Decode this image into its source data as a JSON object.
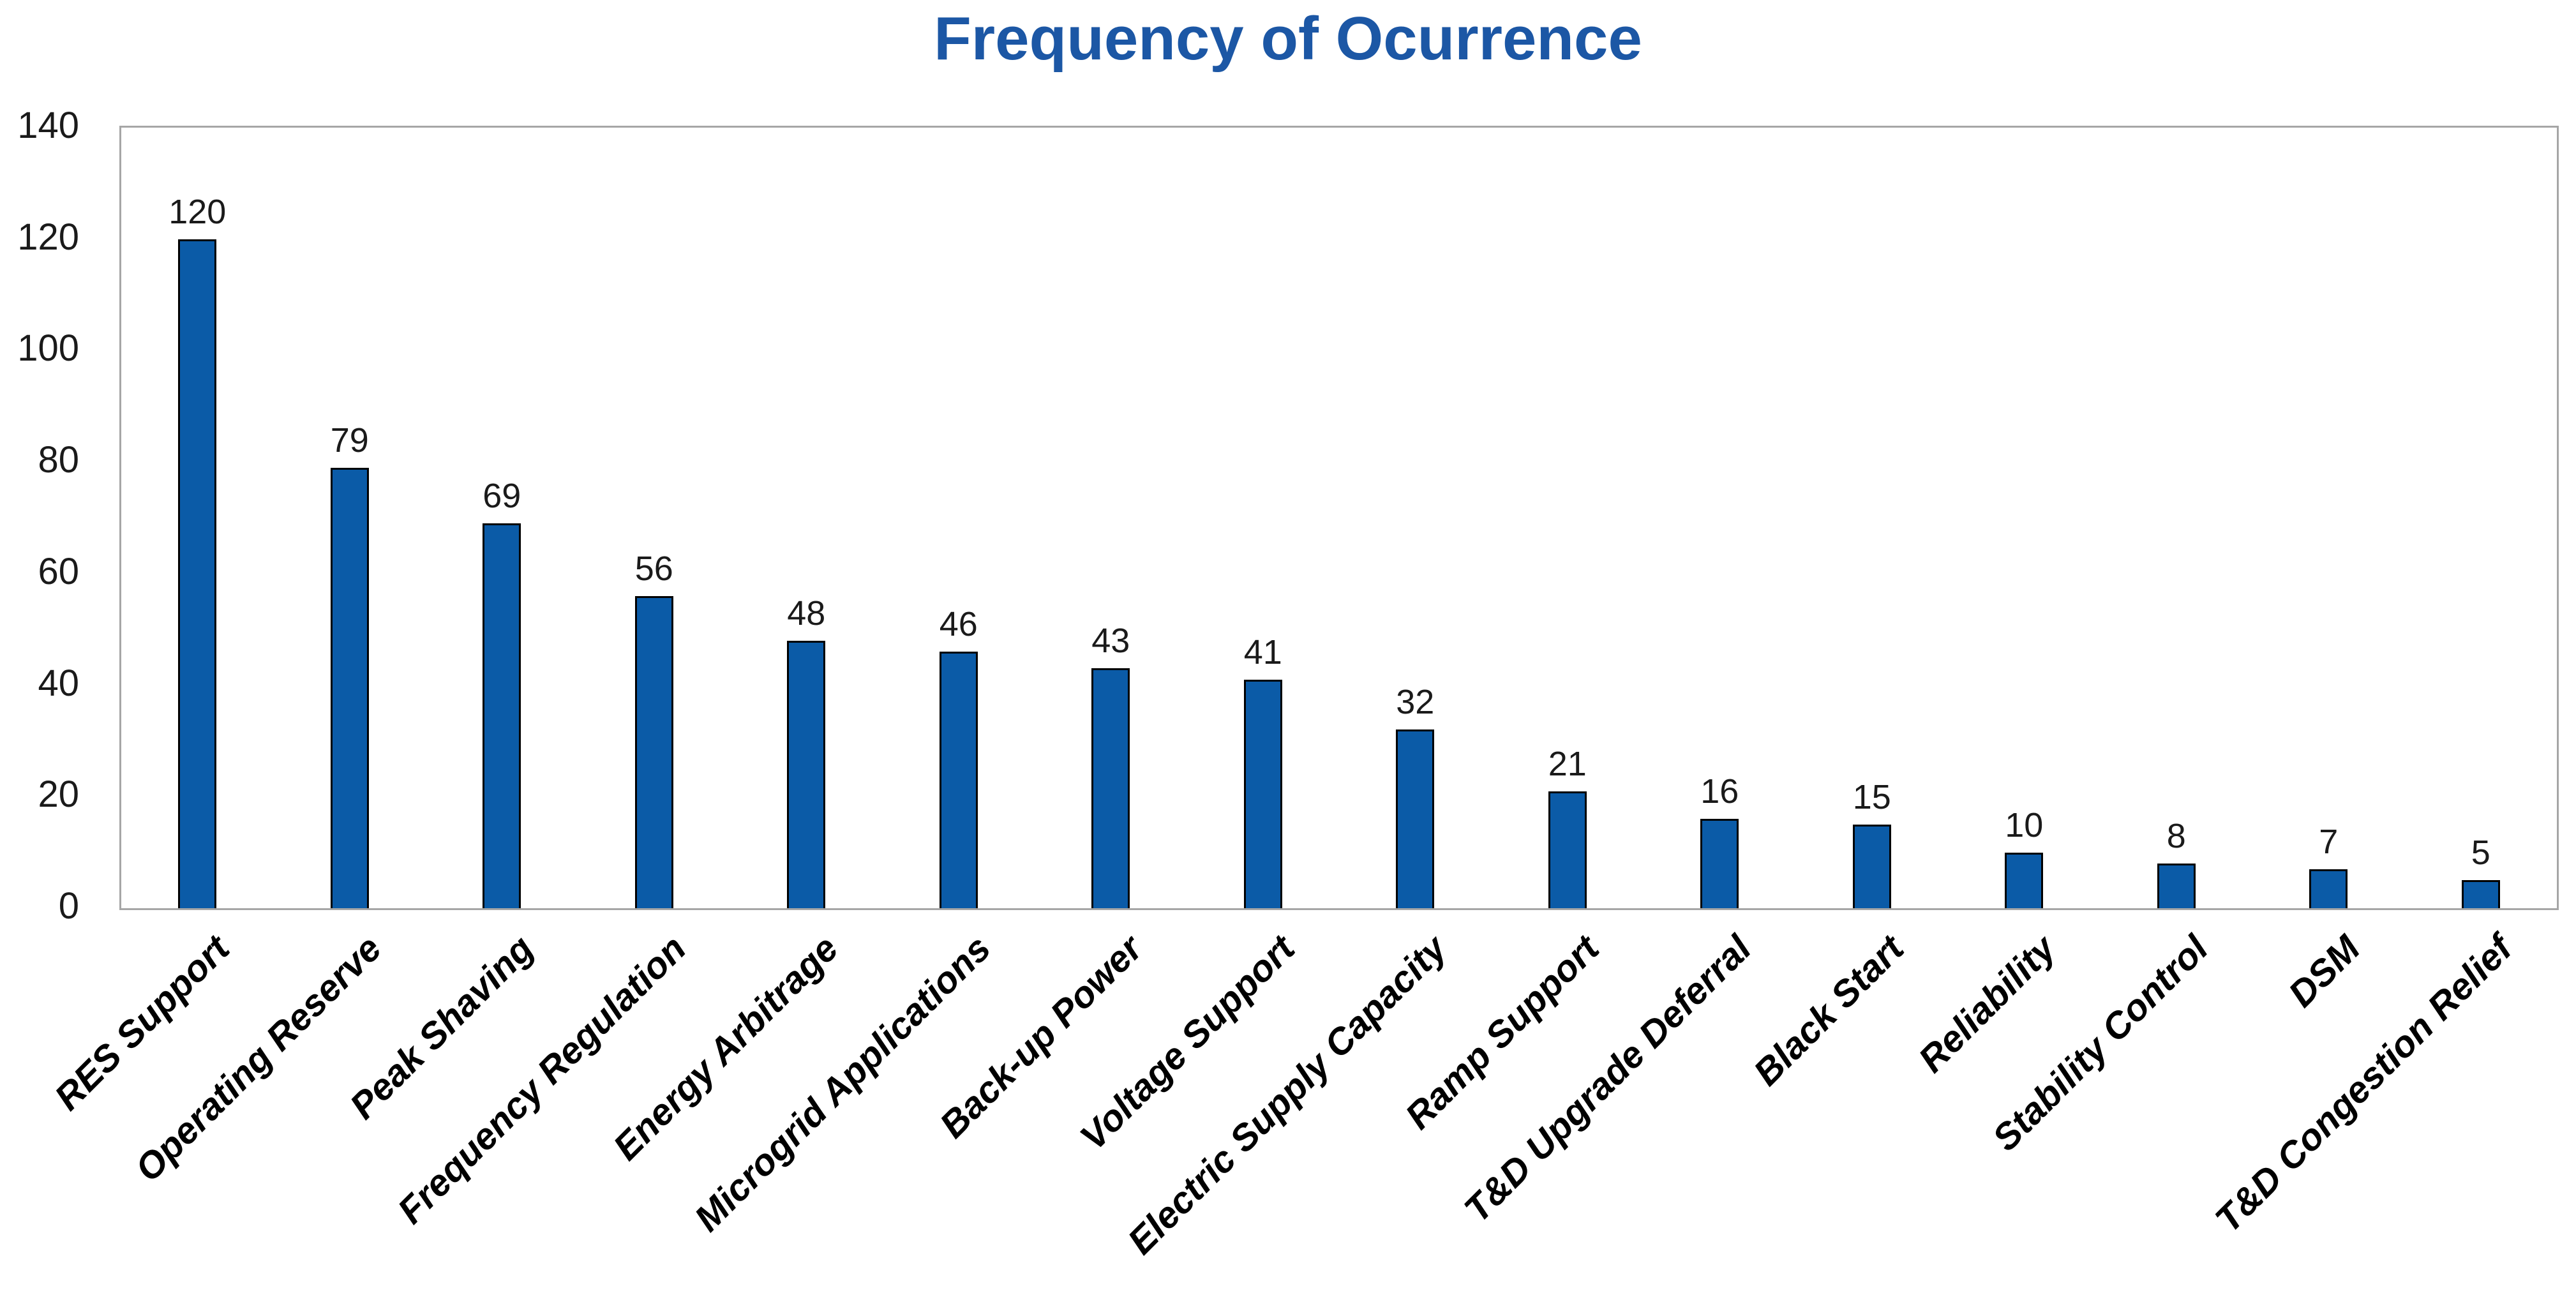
{
  "chart_data": {
    "type": "bar",
    "title": "Frequency of Ocurrence",
    "categories": [
      "RES Support",
      "Operating Reserve",
      "Peak Shaving",
      "Frequency Regulation",
      "Energy Arbitrage",
      "Microgrid Applications",
      "Back-up Power",
      "Voltage Support",
      "Electric Supply Capacity",
      "Ramp Support",
      "T&D Upgrade Deferral",
      "Black Start",
      "Reliability",
      "Stability Control",
      "DSM",
      "T&D Congestion Relief"
    ],
    "values": [
      120,
      79,
      69,
      56,
      48,
      46,
      43,
      41,
      32,
      21,
      16,
      15,
      10,
      8,
      7,
      5
    ],
    "xlabel": "",
    "ylabel": "",
    "ylim": [
      0,
      140
    ],
    "yticks": [
      0,
      20,
      40,
      60,
      80,
      100,
      120,
      140
    ],
    "grid": false,
    "legend": false,
    "data_labels": true,
    "label_rotation_deg": 45,
    "colors": {
      "bar_fill": "#0B5BA7",
      "bar_border": "#000000",
      "title": "#1C57A5",
      "plot_border": "#A6A6A6",
      "label_text": "#1A1A1A",
      "background": "#FFFFFF"
    }
  }
}
